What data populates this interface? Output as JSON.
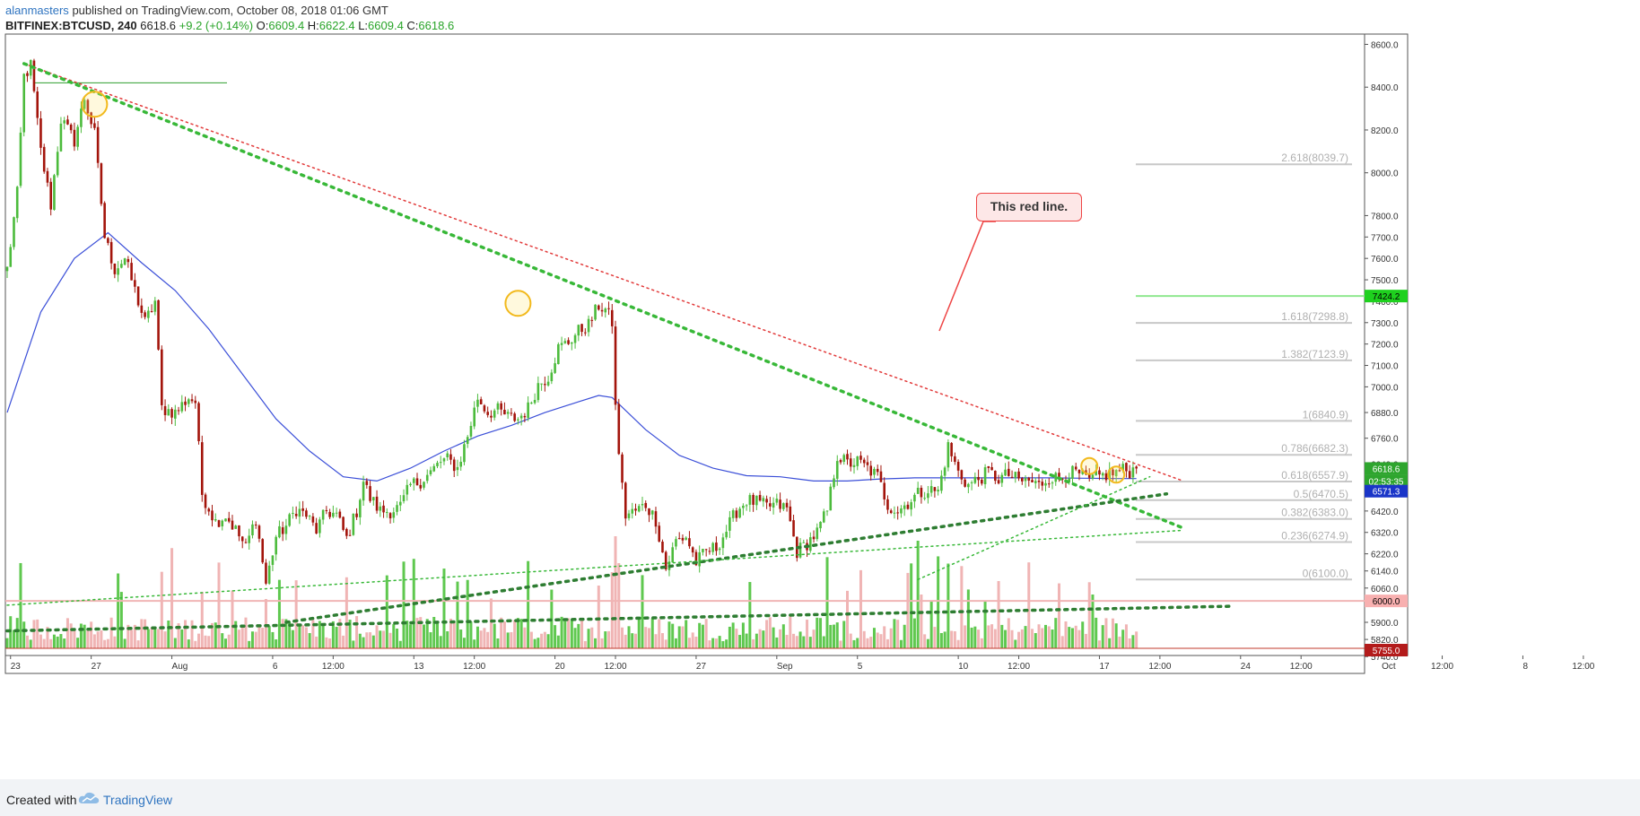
{
  "header": {
    "user": "alanmasters",
    "published": "published on TradingView.com, October 08, 2018 01:06 GMT",
    "symbol": "BITFINEX:BTCUSD, 240",
    "last": "6618.6",
    "change": "+9.2 (+0.14%)",
    "o_label": "O:",
    "o_value": "6609.4",
    "h_label": "H:",
    "h_value": "6622.4",
    "l_label": "L:",
    "l_value": "6609.4",
    "c_label": "C:",
    "c_value": "6618.6"
  },
  "footer": {
    "created": "Created with",
    "brand": "TradingView"
  },
  "annotation": {
    "text": "This red line."
  },
  "colors": {
    "up": "#4cbb3c",
    "down": "#a3140b",
    "vol_up": "#5fc84f",
    "vol_down": "#f0b4b4",
    "ma": "#3b4fd8",
    "red_trend": "#e23b3b",
    "green_trend": "#38b838",
    "dark_green_trend": "#2e7d32",
    "fib": "#c8c8c8",
    "fib_text": "#b0b0b0",
    "circle": "#f2b91c"
  },
  "chart_data": {
    "type": "candlestick",
    "title": "BITFINEX:BTCUSD, 240",
    "ylim": [
      5755,
      8660
    ],
    "y_ticks": [
      8600,
      8400,
      8200,
      8000,
      7800,
      7700,
      7600,
      7500,
      7400,
      7300,
      7200,
      7100,
      7000,
      6880,
      6760,
      6640,
      6520,
      6420,
      6320,
      6220,
      6140,
      6060,
      5990,
      5900,
      5820,
      5740
    ],
    "x_ticks": [
      {
        "label": "23",
        "bar": 1
      },
      {
        "label": "27",
        "bar": 25
      },
      {
        "label": "Aug",
        "bar": 49
      },
      {
        "label": "6",
        "bar": 79
      },
      {
        "label": "12:00",
        "bar": 97
      },
      {
        "label": "13",
        "bar": 121
      },
      {
        "label": "12:00",
        "bar": 139
      },
      {
        "label": "20",
        "bar": 163
      },
      {
        "label": "12:00",
        "bar": 181
      },
      {
        "label": "27",
        "bar": 205
      },
      {
        "label": "Sep",
        "bar": 229
      },
      {
        "label": "5",
        "bar": 253
      },
      {
        "label": "10",
        "bar": 283
      },
      {
        "label": "12:00",
        "bar": 301
      },
      {
        "label": "17",
        "bar": 325
      },
      {
        "label": "12:00",
        "bar": 343
      },
      {
        "label": "24",
        "bar": 367
      },
      {
        "label": "12:00",
        "bar": 385
      },
      {
        "label": "Oct",
        "bar": 409
      },
      {
        "label": "12:00",
        "bar": 427
      },
      {
        "label": "8",
        "bar": 451
      },
      {
        "label": "12:00",
        "bar": 469
      }
    ],
    "anchors": [
      [
        0,
        7550
      ],
      [
        3,
        7900
      ],
      [
        5,
        8450
      ],
      [
        7,
        8500
      ],
      [
        10,
        8100
      ],
      [
        13,
        7850
      ],
      [
        16,
        8250
      ],
      [
        20,
        8150
      ],
      [
        23,
        8350
      ],
      [
        26,
        8180
      ],
      [
        29,
        7700
      ],
      [
        32,
        7550
      ],
      [
        35,
        7600
      ],
      [
        38,
        7450
      ],
      [
        41,
        7300
      ],
      [
        44,
        7400
      ],
      [
        46,
        6900
      ],
      [
        50,
        6880
      ],
      [
        54,
        6950
      ],
      [
        56,
        6930
      ],
      [
        58,
        6500
      ],
      [
        62,
        6370
      ],
      [
        65,
        6400
      ],
      [
        68,
        6330
      ],
      [
        71,
        6250
      ],
      [
        74,
        6390
      ],
      [
        77,
        6080
      ],
      [
        80,
        6300
      ],
      [
        83,
        6350
      ],
      [
        86,
        6430
      ],
      [
        89,
        6400
      ],
      [
        92,
        6330
      ],
      [
        95,
        6420
      ],
      [
        98,
        6400
      ],
      [
        101,
        6290
      ],
      [
        104,
        6420
      ],
      [
        106,
        6560
      ],
      [
        108,
        6480
      ],
      [
        111,
        6420
      ],
      [
        114,
        6420
      ],
      [
        117,
        6440
      ],
      [
        120,
        6540
      ],
      [
        123,
        6560
      ],
      [
        126,
        6600
      ],
      [
        129,
        6650
      ],
      [
        131,
        6660
      ],
      [
        134,
        6620
      ],
      [
        137,
        6770
      ],
      [
        140,
        6950
      ],
      [
        143,
        6880
      ],
      [
        146,
        6890
      ],
      [
        149,
        6860
      ],
      [
        152,
        6850
      ],
      [
        155,
        6900
      ],
      [
        158,
        7010
      ],
      [
        161,
        7050
      ],
      [
        164,
        7180
      ],
      [
        167,
        7210
      ],
      [
        170,
        7260
      ],
      [
        173,
        7290
      ],
      [
        176,
        7380
      ],
      [
        178,
        7360
      ],
      [
        180,
        7300
      ],
      [
        181,
        6900
      ],
      [
        182,
        6700
      ],
      [
        183,
        6530
      ],
      [
        184,
        6400
      ],
      [
        187,
        6420
      ],
      [
        190,
        6450
      ],
      [
        193,
        6380
      ],
      [
        196,
        6150
      ],
      [
        199,
        6280
      ],
      [
        202,
        6300
      ],
      [
        205,
        6180
      ],
      [
        208,
        6230
      ],
      [
        211,
        6250
      ],
      [
        214,
        6330
      ],
      [
        217,
        6420
      ],
      [
        220,
        6470
      ],
      [
        223,
        6460
      ],
      [
        226,
        6440
      ],
      [
        229,
        6450
      ],
      [
        232,
        6430
      ],
      [
        235,
        6230
      ],
      [
        238,
        6270
      ],
      [
        241,
        6320
      ],
      [
        244,
        6420
      ],
      [
        247,
        6680
      ],
      [
        250,
        6640
      ],
      [
        253,
        6650
      ],
      [
        256,
        6620
      ],
      [
        259,
        6580
      ],
      [
        262,
        6450
      ],
      [
        265,
        6420
      ],
      [
        268,
        6460
      ],
      [
        271,
        6500
      ],
      [
        274,
        6520
      ],
      [
        277,
        6510
      ],
      [
        280,
        6720
      ],
      [
        283,
        6600
      ],
      [
        286,
        6540
      ],
      [
        289,
        6570
      ],
      [
        292,
        6600
      ],
      [
        295,
        6570
      ],
      [
        298,
        6590
      ],
      [
        301,
        6560
      ],
      [
        304,
        6560
      ],
      [
        307,
        6540
      ],
      [
        310,
        6580
      ],
      [
        313,
        6570
      ],
      [
        316,
        6600
      ],
      [
        319,
        6590
      ],
      [
        322,
        6560
      ],
      [
        325,
        6580
      ],
      [
        327,
        6590
      ],
      [
        330,
        6600
      ],
      [
        332,
        6612
      ],
      [
        334,
        6605
      ],
      [
        336,
        6618.6
      ]
    ],
    "ma": [
      [
        0,
        6880
      ],
      [
        10,
        7350
      ],
      [
        20,
        7600
      ],
      [
        30,
        7720
      ],
      [
        40,
        7580
      ],
      [
        50,
        7450
      ],
      [
        60,
        7270
      ],
      [
        70,
        7060
      ],
      [
        80,
        6850
      ],
      [
        90,
        6700
      ],
      [
        100,
        6580
      ],
      [
        110,
        6560
      ],
      [
        120,
        6620
      ],
      [
        130,
        6700
      ],
      [
        140,
        6770
      ],
      [
        150,
        6820
      ],
      [
        160,
        6880
      ],
      [
        170,
        6930
      ],
      [
        176,
        6960
      ],
      [
        180,
        6950
      ],
      [
        190,
        6800
      ],
      [
        200,
        6680
      ],
      [
        210,
        6620
      ],
      [
        220,
        6585
      ],
      [
        230,
        6580
      ],
      [
        240,
        6560
      ],
      [
        250,
        6560
      ],
      [
        260,
        6570
      ],
      [
        270,
        6575
      ],
      [
        280,
        6575
      ],
      [
        290,
        6575
      ],
      [
        300,
        6575
      ],
      [
        310,
        6575
      ],
      [
        320,
        6573
      ],
      [
        330,
        6572
      ],
      [
        336,
        6571.3
      ]
    ],
    "fibonacci": [
      {
        "label": "2.618(8039.7)",
        "value": 8039.7
      },
      {
        "label": "1.618(7298.8)",
        "value": 7298.8
      },
      {
        "label": "1.382(7123.9)",
        "value": 7123.9
      },
      {
        "label": "1(6840.9)",
        "value": 6840.9
      },
      {
        "label": "0.786(6682.3)",
        "value": 6682.3
      },
      {
        "label": "0.618(6557.9)",
        "value": 6557.9
      },
      {
        "label": "0.5(6470.5)",
        "value": 6470.5
      },
      {
        "label": "0.382(6383.0)",
        "value": 6383.0
      },
      {
        "label": "0.236(6274.9)",
        "value": 6274.9
      },
      {
        "label": "0(6100.0)",
        "value": 6100.0
      }
    ],
    "levels": [
      {
        "label": "7424.2",
        "value": 7424.2,
        "type": "resistance"
      },
      {
        "label": "6000.0",
        "value": 6000.0,
        "type": "support"
      }
    ],
    "price_labels": [
      {
        "label": "6618.6",
        "value": 6618.6,
        "role": "last"
      },
      {
        "label": "02:53:35",
        "value": 6595,
        "role": "countdown"
      },
      {
        "label": "6571.3",
        "value": 6571.3,
        "role": "ma"
      },
      {
        "label": "5755.0",
        "value": 5755.0,
        "role": "volume"
      }
    ],
    "trendlines": [
      {
        "name": "red",
        "style": "dotted",
        "from": [
          5,
          8510
        ],
        "to": [
          350,
          6560
        ]
      },
      {
        "name": "green",
        "style": "dotted-thick",
        "from": [
          5,
          8510
        ],
        "to": [
          350,
          6340
        ]
      },
      {
        "name": "dark-green",
        "style": "dotted-thick",
        "from": [
          0,
          5860
        ],
        "to": [
          364,
          5975
        ]
      },
      {
        "name": "dark-green-2",
        "style": "dotted-thick",
        "from": [
          83,
          5900
        ],
        "to": [
          345,
          6500
        ]
      },
      {
        "name": "light-green",
        "style": "dotted",
        "from": [
          0,
          5980
        ],
        "to": [
          350,
          6330
        ]
      },
      {
        "name": "light-green-2",
        "style": "dotted",
        "from": [
          271,
          6100
        ],
        "to": [
          340,
          6580
        ]
      }
    ],
    "circles": [
      [
        26,
        8320
      ],
      [
        152,
        7390
      ],
      [
        322,
        6630
      ],
      [
        330,
        6590
      ]
    ]
  }
}
